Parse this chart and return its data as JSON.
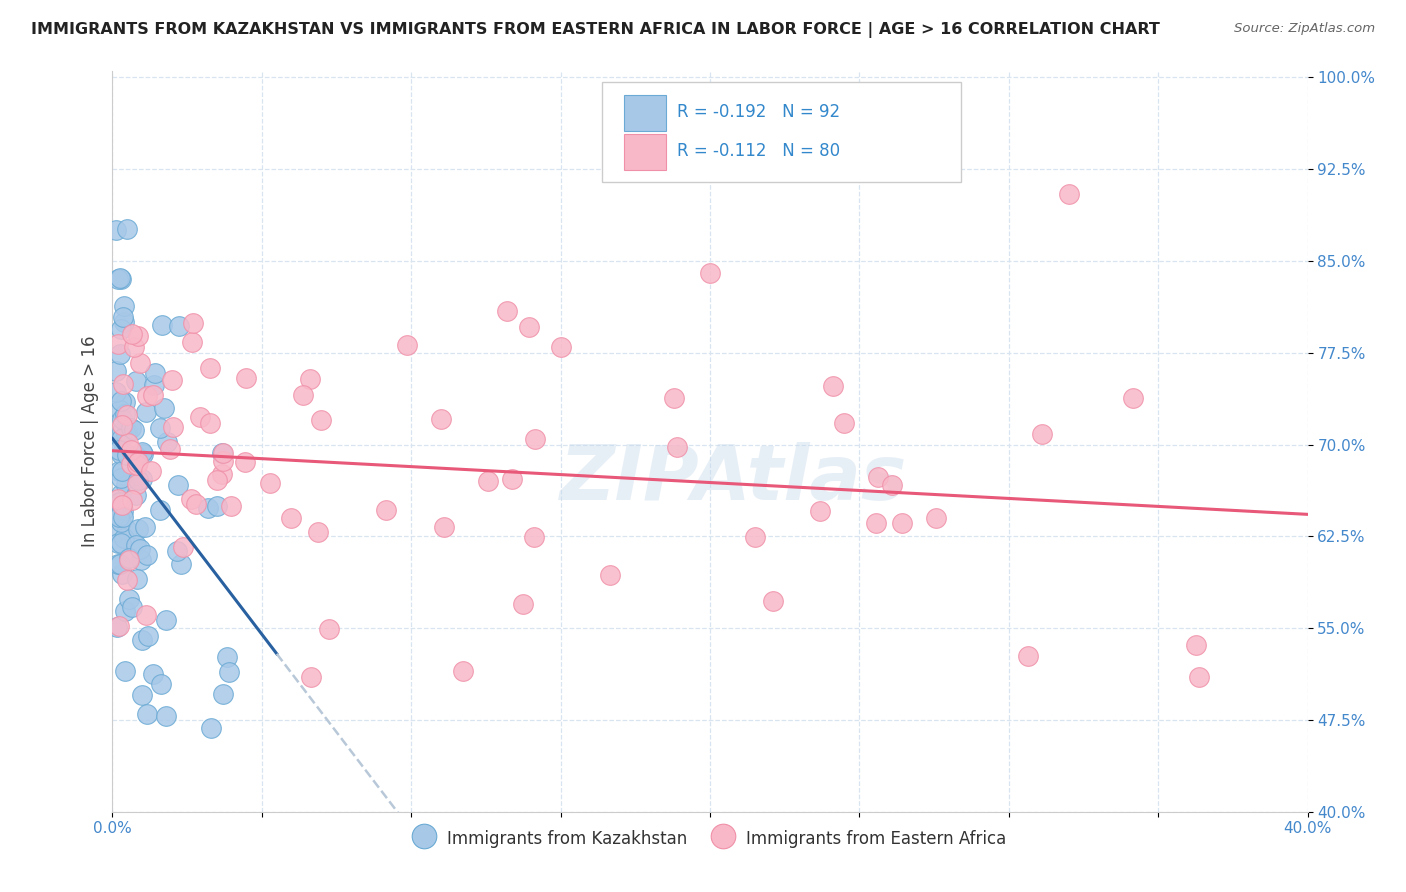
{
  "title": "IMMIGRANTS FROM KAZAKHSTAN VS IMMIGRANTS FROM EASTERN AFRICA IN LABOR FORCE | AGE > 16 CORRELATION CHART",
  "source": "Source: ZipAtlas.com",
  "ylabel": "In Labor Force | Age > 16",
  "xlim": [
    0.0,
    0.4
  ],
  "ylim": [
    0.4,
    1.005
  ],
  "xticks": [
    0.0,
    0.05,
    0.1,
    0.15,
    0.2,
    0.25,
    0.3,
    0.35,
    0.4
  ],
  "yticks": [
    0.4,
    0.475,
    0.55,
    0.625,
    0.7,
    0.775,
    0.85,
    0.925,
    1.0
  ],
  "ytick_labels": [
    "40.0%",
    "47.5%",
    "55.0%",
    "62.5%",
    "70.0%",
    "77.5%",
    "85.0%",
    "92.5%",
    "100.0%"
  ],
  "xtick_labels": [
    "0.0%",
    "",
    "",
    "",
    "",
    "",
    "",
    "",
    "40.0%"
  ],
  "legend_R1": "R = -0.192",
  "legend_N1": "N = 92",
  "legend_R2": "R = -0.112",
  "legend_N2": "N = 80",
  "color_kaz": "#a8c8e8",
  "color_kaz_border": "#6aaad4",
  "color_kaz_line": "#2860a0",
  "color_ea": "#f8b8c8",
  "color_ea_border": "#f090a8",
  "color_ea_line": "#e85878",
  "color_dashed": "#b8c8d8",
  "watermark": "ZIPAtlas",
  "background_color": "#ffffff",
  "grid_color": "#d8e4f0",
  "title_color": "#222222",
  "source_color": "#666666",
  "tick_color": "#4488cc",
  "label_color": "#444444"
}
